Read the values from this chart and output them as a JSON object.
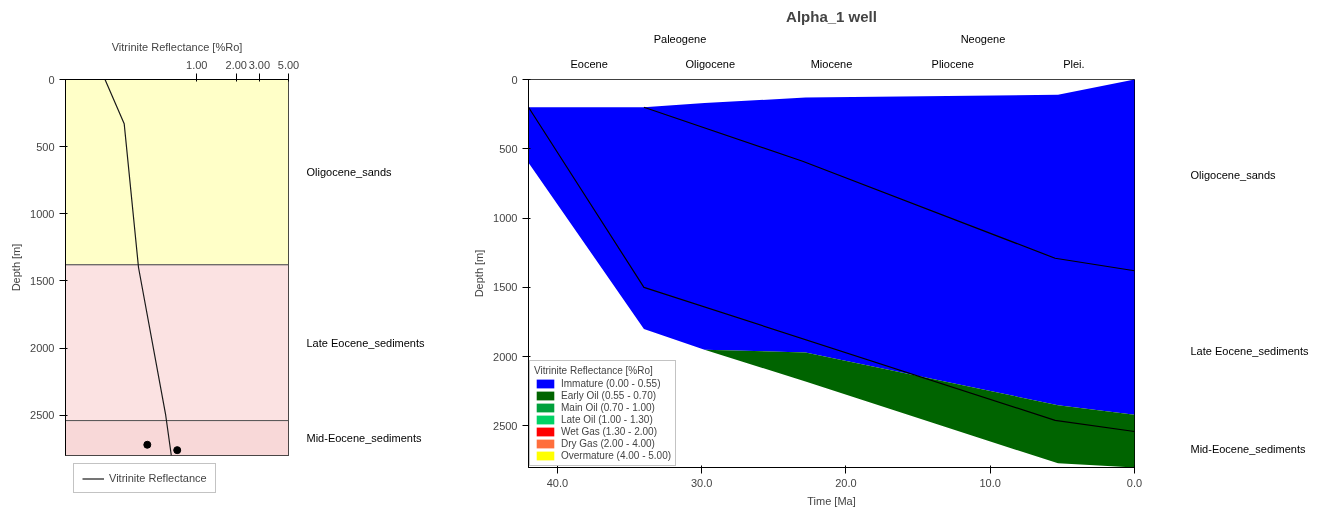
{
  "chart_data": [
    {
      "type": "line",
      "xlabel": "Vitrinite Reflectance [%Ro]",
      "ylabel": "Depth [m]",
      "log": "x",
      "xlim": [
        0.1,
        5
      ],
      "xticks": [
        {
          "value": 1,
          "label": "1.00"
        },
        {
          "value": 2,
          "label": "2.00"
        },
        {
          "value": 3,
          "label": "3.00"
        },
        {
          "value": 5,
          "label": "5.00"
        }
      ],
      "ylim": [
        2800,
        0
      ],
      "yticks": [
        0,
        500,
        1000,
        1500,
        2000,
        2500
      ],
      "grid": false,
      "legend": "bottom",
      "series": [
        {
          "name": "Vitrinite Reflectance",
          "color": "#1a1a1a",
          "x": [
            0.2,
            0.28,
            0.36,
            0.58,
            0.64
          ],
          "values": [
            0,
            330,
            1400,
            2500,
            2800
          ]
        },
        {
          "type": "scatter",
          "color": "#000000",
          "marker": "circle",
          "x": [
            0.42,
            0.71
          ],
          "values": [
            2720,
            2760
          ]
        }
      ],
      "bands": [
        {
          "axis": "y",
          "from": 0,
          "to": 1380,
          "label": "Oligocene_sands",
          "color": "#ffffc8"
        },
        {
          "axis": "y",
          "from": 1380,
          "to": 2540,
          "label": "Late Eocene_sediments",
          "color": "#fbe2e2"
        },
        {
          "axis": "y",
          "from": 2540,
          "to": 2800,
          "label": "Mid-Eocene_sediments",
          "color": "#f8d8d8"
        }
      ]
    },
    {
      "type": "area",
      "stacked": true,
      "title": "Alpha_1 well",
      "xlabel": "Time [Ma]",
      "ylabel": "Depth [m]",
      "xlim": [
        42,
        0
      ],
      "xticks": [
        {
          "value": 40,
          "label": "40.0"
        },
        {
          "value": 30,
          "label": "30.0"
        },
        {
          "value": 20,
          "label": "20.0"
        },
        {
          "value": 10,
          "label": "10.0"
        },
        {
          "value": 0,
          "label": "0.0"
        }
      ],
      "ylim": [
        2800,
        0
      ],
      "yticks": [
        0,
        500,
        1000,
        1500,
        2000,
        2500
      ],
      "grid": false,
      "legend": "bottom left",
      "legend_title": "Vitrinite Reflectance [%Ro]",
      "series": [
        {
          "color": "#ffffff",
          "x": [
            42,
            34,
            29.8,
            22.8,
            5.3,
            0
          ],
          "values": [
            200,
            200,
            170,
            130,
            110,
            0
          ]
        },
        {
          "name": "Immature (0.00 - 0.55)",
          "color": "#0000ff",
          "x": [
            42,
            34,
            29.8,
            22.8,
            5.3,
            0
          ],
          "values": [
            400,
            1600,
            1780,
            1840,
            2240,
            2420
          ]
        },
        {
          "name": "Early Oil (0.55 - 0.70)",
          "color": "#006400",
          "x": [
            42,
            34,
            29.8,
            22.8,
            5.3,
            0
          ],
          "values": [
            0,
            0,
            0,
            210,
            420,
            380
          ]
        },
        {
          "name": "Main Oil (0.70 - 1.00)",
          "color": "#00a03c"
        },
        {
          "name": "Late Oil (1.00 - 1.30)",
          "color": "#00d264"
        },
        {
          "name": "Wet Gas (1.30 - 2.00)",
          "color": "#ff0000"
        },
        {
          "name": "Dry Gas (2.00 - 4.00)",
          "color": "#ff6e3c"
        },
        {
          "name": "Overmature (4.00 - 5.00)",
          "color": "#ffff00"
        },
        {
          "type": "line",
          "color": "#000000",
          "x": [
            34,
            23,
            5.5,
            0
          ],
          "values": [
            200,
            590,
            1290,
            1380
          ]
        },
        {
          "type": "line",
          "color": "#000000",
          "x": [
            42,
            34,
            5.5,
            0
          ],
          "values": [
            200,
            1500,
            2460,
            2540
          ]
        }
      ],
      "annotations": [
        "Paleogene",
        "Neogene",
        "Eocene",
        "Oligocene",
        "Miocene",
        "Pliocene",
        "Plei.",
        "Oligocene_sands",
        "Late Eocene_sediments",
        "Mid-Eocene_sediments"
      ]
    }
  ]
}
